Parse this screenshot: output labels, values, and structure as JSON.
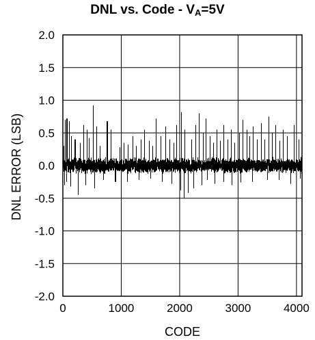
{
  "chart_data": {
    "type": "line",
    "title": {
      "prefix": "DNL vs. Code - V",
      "subscript": "A",
      "suffix": "=5V"
    },
    "xlabel": "CODE",
    "ylabel": "DNL ERROR (LSB)",
    "xlim": [
      0,
      4095
    ],
    "ylim": [
      -2.0,
      2.0
    ],
    "x_ticks": [
      {
        "value": 0,
        "label": "0"
      },
      {
        "value": 1000,
        "label": "1000"
      },
      {
        "value": 2000,
        "label": "2000"
      },
      {
        "value": 3000,
        "label": "3000"
      },
      {
        "value": 4000,
        "label": "4000"
      }
    ],
    "y_ticks": [
      {
        "value": 2.0,
        "label": "2.0"
      },
      {
        "value": 1.5,
        "label": "1.5"
      },
      {
        "value": 1.0,
        "label": "1.0"
      },
      {
        "value": 0.5,
        "label": "0.5"
      },
      {
        "value": 0.0,
        "label": "0.0"
      },
      {
        "value": -0.5,
        "label": "-0.5"
      },
      {
        "value": -1.0,
        "label": "-1.0"
      },
      {
        "value": -1.5,
        "label": "-1.5"
      },
      {
        "value": -2.0,
        "label": "-2.0"
      }
    ],
    "grid": true,
    "legend": "none",
    "line_color": "#000000",
    "series": [
      {
        "description_values": "Approximate DNL per code: dense noise band within about ±0.15 LSB with sparse spikes",
        "noise_band": [
          -0.15,
          0.15
        ],
        "max_value": 0.92,
        "min_value": -0.5,
        "positive_spikes": [
          [
            20,
            0.3
          ],
          [
            45,
            0.7
          ],
          [
            70,
            0.72
          ],
          [
            110,
            0.68
          ],
          [
            150,
            0.45
          ],
          [
            210,
            0.4
          ],
          [
            300,
            0.35
          ],
          [
            360,
            0.62
          ],
          [
            420,
            0.55
          ],
          [
            455,
            0.42
          ],
          [
            515,
            0.92
          ],
          [
            580,
            0.6
          ],
          [
            640,
            0.3
          ],
          [
            700,
            0.35
          ],
          [
            760,
            0.68
          ],
          [
            820,
            0.55
          ],
          [
            900,
            0.3
          ],
          [
            980,
            0.28
          ],
          [
            1050,
            0.35
          ],
          [
            1120,
            0.32
          ],
          [
            1200,
            0.45
          ],
          [
            1260,
            0.3
          ],
          [
            1340,
            0.4
          ],
          [
            1400,
            0.55
          ],
          [
            1480,
            0.38
          ],
          [
            1540,
            0.3
          ],
          [
            1600,
            0.72
          ],
          [
            1680,
            0.45
          ],
          [
            1760,
            0.6
          ],
          [
            1830,
            0.4
          ],
          [
            1900,
            0.35
          ],
          [
            1950,
            0.62
          ],
          [
            2030,
            0.82
          ],
          [
            2090,
            0.55
          ],
          [
            2150,
            0.75
          ],
          [
            2210,
            0.4
          ],
          [
            2280,
            0.62
          ],
          [
            2330,
            0.8
          ],
          [
            2400,
            0.5
          ],
          [
            2450,
            0.72
          ],
          [
            2520,
            0.45
          ],
          [
            2580,
            0.35
          ],
          [
            2640,
            0.55
          ],
          [
            2700,
            0.38
          ],
          [
            2760,
            0.62
          ],
          [
            2820,
            0.4
          ],
          [
            2880,
            0.55
          ],
          [
            2940,
            0.35
          ],
          [
            3020,
            0.5
          ],
          [
            3080,
            0.7
          ],
          [
            3150,
            0.55
          ],
          [
            3200,
            0.45
          ],
          [
            3260,
            0.6
          ],
          [
            3330,
            0.4
          ],
          [
            3400,
            0.65
          ],
          [
            3460,
            0.4
          ],
          [
            3530,
            0.75
          ],
          [
            3590,
            0.5
          ],
          [
            3640,
            0.62
          ],
          [
            3710,
            0.38
          ],
          [
            3770,
            0.55
          ],
          [
            3840,
            0.45
          ],
          [
            3900,
            0.7
          ],
          [
            3960,
            0.62
          ],
          [
            4040,
            0.4
          ]
        ],
        "negative_spikes": [
          [
            30,
            -0.3
          ],
          [
            60,
            -0.25
          ],
          [
            130,
            -0.32
          ],
          [
            260,
            -0.45
          ],
          [
            390,
            -0.3
          ],
          [
            540,
            -0.35
          ],
          [
            700,
            -0.22
          ],
          [
            900,
            -0.25
          ],
          [
            1100,
            -0.25
          ],
          [
            1300,
            -0.22
          ],
          [
            1500,
            -0.2
          ],
          [
            1700,
            -0.25
          ],
          [
            1870,
            -0.28
          ],
          [
            2020,
            -0.38
          ],
          [
            2080,
            -0.5
          ],
          [
            2150,
            -0.42
          ],
          [
            2240,
            -0.35
          ],
          [
            2380,
            -0.3
          ],
          [
            2470,
            -0.22
          ],
          [
            2600,
            -0.28
          ],
          [
            2750,
            -0.25
          ],
          [
            2900,
            -0.3
          ],
          [
            3050,
            -0.26
          ],
          [
            3250,
            -0.25
          ],
          [
            3500,
            -0.22
          ],
          [
            3700,
            -0.22
          ],
          [
            3900,
            -0.28
          ],
          [
            4070,
            -0.2
          ]
        ]
      }
    ]
  }
}
